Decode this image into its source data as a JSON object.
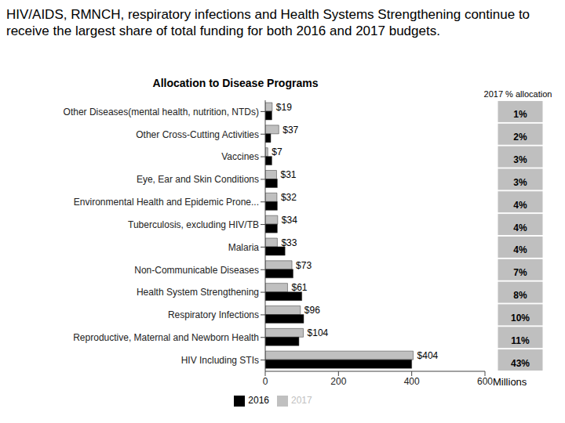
{
  "chart_data": {
    "type": "bar",
    "orientation": "horizontal",
    "title": "HIV/AIDS, RMNCH, respiratory infections and Health Systems Strengthening continue to receive the largest share of total funding for both 2016 and 2017 budgets.",
    "subtitle": "Allocation to Disease Programs",
    "x_label": "Millions",
    "categories": [
      "Other Diseases(mental health, nutrition, NTDs)",
      "Other Cross-Cutting Activities",
      "Vaccines",
      "Eye, Ear and Skin Conditions",
      "Environmental Health and Epidemic Prone...",
      "Tuberculosis, excluding HIV/TB",
      "Malaria",
      "Non-Communicable Diseases",
      "Health System Strengthening",
      "Respiratory Infections",
      "Reproductive, Maternal and Newborn Health",
      "HIV Including STIs"
    ],
    "series": [
      {
        "name": "2017",
        "color": "#c0c0c0",
        "values": [
          19,
          37,
          7,
          31,
          32,
          34,
          33,
          73,
          61,
          96,
          104,
          404
        ],
        "value_labels": [
          "$19",
          "$37",
          "$7",
          "$31",
          "$32",
          "$34",
          "$33",
          "$73",
          "$61",
          "$96",
          "$104",
          "$404"
        ]
      },
      {
        "name": "2016",
        "color": "#000000",
        "values": [
          18,
          15,
          18,
          33,
          33,
          33,
          54,
          76,
          100,
          105,
          92,
          400
        ]
      }
    ],
    "xlim": [
      0,
      600
    ],
    "xticks": [
      0,
      200,
      400,
      600
    ],
    "data_labels": true,
    "legend": "bottom",
    "grid": false,
    "allocation": {
      "title": "2017 % allocation",
      "values": [
        1,
        2,
        3,
        3,
        4,
        4,
        4,
        7,
        8,
        10,
        11,
        43
      ],
      "value_labels": [
        "1%",
        "2%",
        "3%",
        "3%",
        "4%",
        "4%",
        "4%",
        "7%",
        "8%",
        "10%",
        "11%",
        "43%"
      ]
    }
  }
}
